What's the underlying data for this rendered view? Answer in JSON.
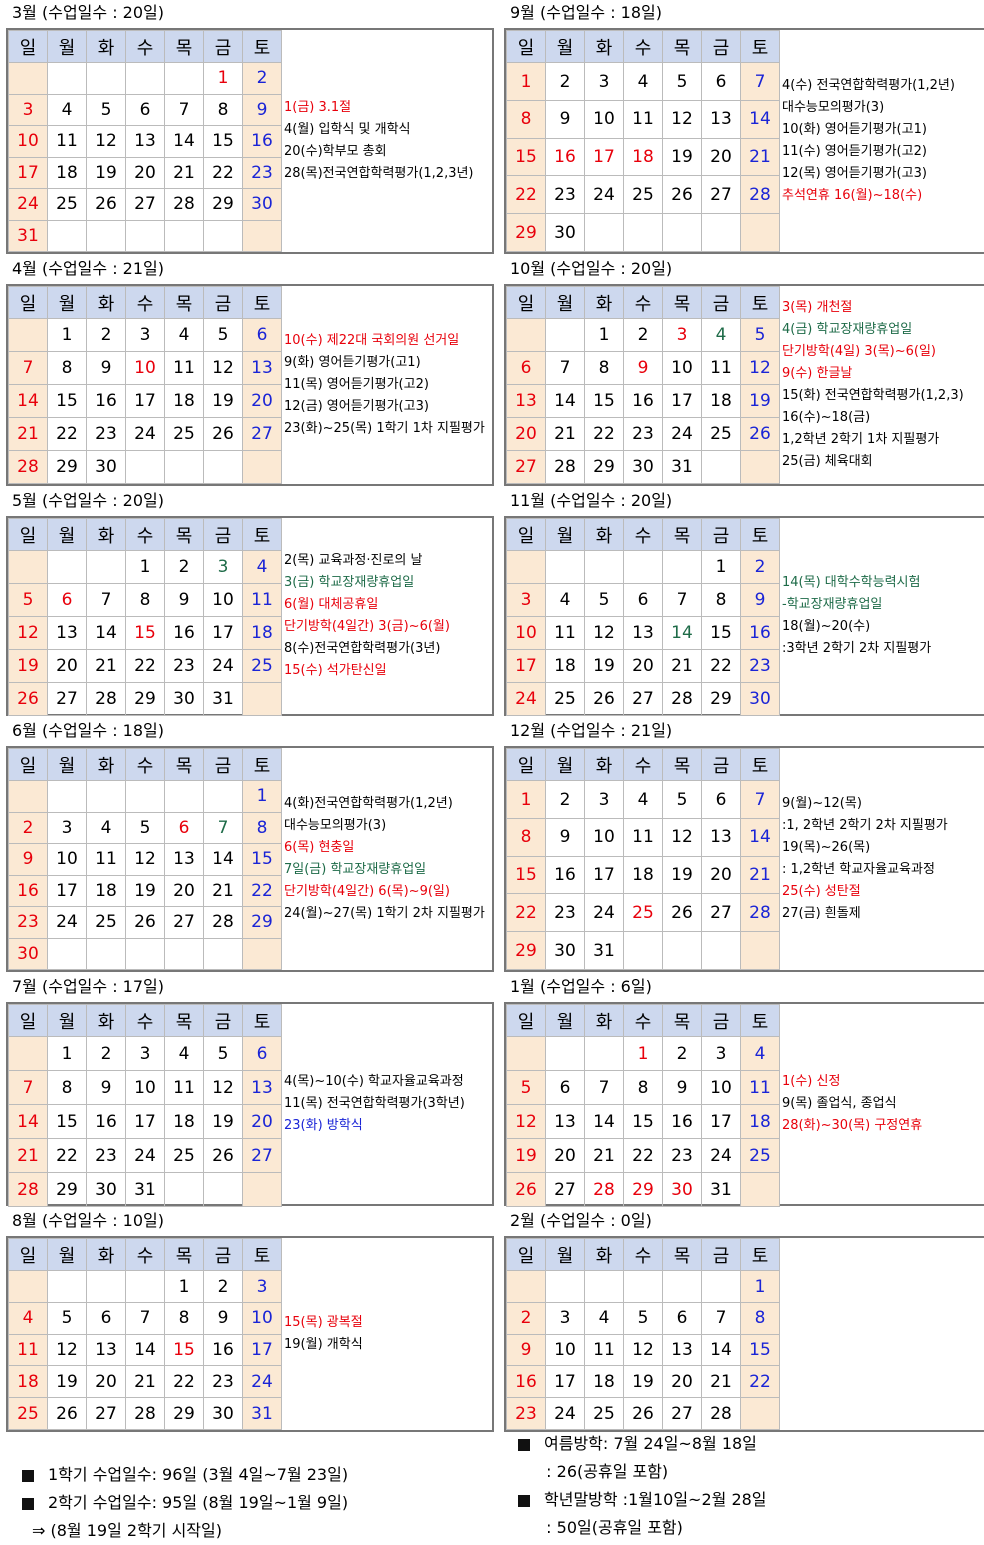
{
  "months": [
    {
      "id": "mar",
      "title": "3월 (수업일수 : 20일)",
      "headers": [
        "일",
        "월",
        "화",
        "수",
        "목",
        "금",
        "토"
      ],
      "rows": [
        [
          "",
          "",
          "",
          "",
          "",
          "1",
          "2"
        ],
        [
          "3",
          "4",
          "5",
          "6",
          "7",
          "8",
          "9"
        ],
        [
          "10",
          "11",
          "12",
          "13",
          "14",
          "15",
          "16"
        ],
        [
          "17",
          "18",
          "19",
          "20",
          "21",
          "22",
          "23"
        ],
        [
          "24",
          "25",
          "26",
          "27",
          "28",
          "29",
          "30"
        ],
        [
          "31",
          "",
          "",
          "",
          "",
          "",
          ""
        ]
      ],
      "red_days": [
        "1"
      ],
      "green_days": [],
      "blue_days": [],
      "events": [
        {
          "text": "1(금) 3.1절",
          "color": "red"
        },
        {
          "text": "4(월) 입학식 및 개학식",
          "color": ""
        },
        {
          "text": "20(수)학부모 총회",
          "color": ""
        },
        {
          "text": "28(목)전국연합학력평가(1,2,3년)",
          "color": ""
        }
      ]
    },
    {
      "id": "sep",
      "title": "9월 (수업일수 : 18일)",
      "headers": [
        "일",
        "월",
        "화",
        "수",
        "목",
        "금",
        "토"
      ],
      "rows": [
        [
          "1",
          "2",
          "3",
          "4",
          "5",
          "6",
          "7"
        ],
        [
          "8",
          "9",
          "10",
          "11",
          "12",
          "13",
          "14"
        ],
        [
          "15",
          "16",
          "17",
          "18",
          "19",
          "20",
          "21"
        ],
        [
          "22",
          "23",
          "24",
          "25",
          "26",
          "27",
          "28"
        ],
        [
          "29",
          "30",
          "",
          "",
          "",
          "",
          ""
        ]
      ],
      "red_days": [
        "16",
        "17",
        "18"
      ],
      "green_days": [],
      "blue_days": [],
      "events": [
        {
          "text": "4(수)  전국연합학력평가(1,2년)",
          "color": ""
        },
        {
          "text": "    대수능모의평가(3)",
          "color": ""
        },
        {
          "text": "10(화) 영어듣기평가(고1)",
          "color": ""
        },
        {
          "text": "11(수) 영어듣기평가(고2)",
          "color": ""
        },
        {
          "text": "12(목) 영어듣기평가(고3)",
          "color": ""
        },
        {
          "text": "추석연휴 16(월)~18(수)",
          "color": "red"
        }
      ]
    },
    {
      "id": "apr",
      "title": "4월 (수업일수 : 21일)",
      "headers": [
        "일",
        "월",
        "화",
        "수",
        "목",
        "금",
        "토"
      ],
      "rows": [
        [
          "",
          "1",
          "2",
          "3",
          "4",
          "5",
          "6"
        ],
        [
          "7",
          "8",
          "9",
          "10",
          "11",
          "12",
          "13"
        ],
        [
          "14",
          "15",
          "16",
          "17",
          "18",
          "19",
          "20"
        ],
        [
          "21",
          "22",
          "23",
          "24",
          "25",
          "26",
          "27"
        ],
        [
          "28",
          "29",
          "30",
          "",
          "",
          "",
          ""
        ]
      ],
      "red_days": [
        "10"
      ],
      "green_days": [],
      "blue_days": [],
      "events": [
        {
          "text": "10(수) 제22대 국회의원 선거일",
          "color": "red"
        },
        {
          "text": "9(화) 영어듣기평가(고1)",
          "color": ""
        },
        {
          "text": "11(목) 영어듣기평가(고2)",
          "color": ""
        },
        {
          "text": "12(금) 영어듣기평가(고3)",
          "color": ""
        },
        {
          "text": "23(화)~25(목) 1학기 1차 지필평가",
          "color": ""
        }
      ]
    },
    {
      "id": "oct",
      "title": "10월 (수업일수 : 20일)",
      "headers": [
        "일",
        "월",
        "화",
        "수",
        "목",
        "금",
        "토"
      ],
      "rows": [
        [
          "",
          "",
          "1",
          "2",
          "3",
          "4",
          "5"
        ],
        [
          "6",
          "7",
          "8",
          "9",
          "10",
          "11",
          "12"
        ],
        [
          "13",
          "14",
          "15",
          "16",
          "17",
          "18",
          "19"
        ],
        [
          "20",
          "21",
          "22",
          "23",
          "24",
          "25",
          "26"
        ],
        [
          "27",
          "28",
          "29",
          "30",
          "31",
          "",
          ""
        ]
      ],
      "red_days": [
        "3",
        "9"
      ],
      "green_days": [
        "4"
      ],
      "blue_days": [],
      "events": [
        {
          "text": "3(목) 개천절",
          "color": "red"
        },
        {
          "text": "4(금) 학교장재량휴업일",
          "color": "green"
        },
        {
          "text": "단기방학(4일) 3(목)~6(일)",
          "color": "red"
        },
        {
          "text": "9(수) 한글날",
          "color": "red"
        },
        {
          "text": "15(화)  전국연합학력평가(1,2,3)",
          "color": ""
        },
        {
          "text": "16(수)~18(금)",
          "color": ""
        },
        {
          "text": "  1,2학년 2학기 1차 지필평가",
          "color": ""
        },
        {
          "text": "25(금) 체육대회",
          "color": ""
        }
      ]
    },
    {
      "id": "may",
      "title": "5월 (수업일수 : 20일)",
      "headers": [
        "일",
        "월",
        "화",
        "수",
        "목",
        "금",
        "토"
      ],
      "rows": [
        [
          "",
          "",
          "",
          "1",
          "2",
          "3",
          "4"
        ],
        [
          "5",
          "6",
          "7",
          "8",
          "9",
          "10",
          "11"
        ],
        [
          "12",
          "13",
          "14",
          "15",
          "16",
          "17",
          "18"
        ],
        [
          "19",
          "20",
          "21",
          "22",
          "23",
          "24",
          "25"
        ],
        [
          "26",
          "27",
          "28",
          "29",
          "30",
          "31",
          ""
        ]
      ],
      "red_days": [
        "6",
        "15"
      ],
      "green_days": [
        "3"
      ],
      "blue_days": [],
      "events": [
        {
          "text": "2(목) 교육과정·진로의 날",
          "color": ""
        },
        {
          "text": "3(금) 학교장재량휴업일",
          "color": "green"
        },
        {
          "text": "6(월) 대체공휴일",
          "color": "red"
        },
        {
          "text": "단기방학(4일간) 3(금)~6(월)",
          "color": "red"
        },
        {
          "text": "8(수)전국연합학력평가(3년)",
          "color": ""
        },
        {
          "text": "15(수) 석가탄신일",
          "color": "red"
        }
      ]
    },
    {
      "id": "nov",
      "title": "11월 (수업일수 : 20일)",
      "headers": [
        "일",
        "월",
        "화",
        "수",
        "목",
        "금",
        "토"
      ],
      "rows": [
        [
          "",
          "",
          "",
          "",
          "",
          "1",
          "2"
        ],
        [
          "3",
          "4",
          "5",
          "6",
          "7",
          "8",
          "9"
        ],
        [
          "10",
          "11",
          "12",
          "13",
          "14",
          "15",
          "16"
        ],
        [
          "17",
          "18",
          "19",
          "20",
          "21",
          "22",
          "23"
        ],
        [
          "24",
          "25",
          "26",
          "27",
          "28",
          "29",
          "30"
        ]
      ],
      "red_days": [],
      "green_days": [
        "14"
      ],
      "blue_days": [],
      "events": [
        {
          "text": "14(목) 대학수학능력시험",
          "color": "green"
        },
        {
          "text": "  -학교장재량휴업일",
          "color": "green"
        },
        {
          "text": "18(월)~20(수)",
          "color": ""
        },
        {
          "text": " :3학년 2학기 2차 지필평가",
          "color": ""
        }
      ]
    },
    {
      "id": "jun",
      "title": "6월 (수업일수 : 18일)",
      "headers": [
        "일",
        "월",
        "화",
        "수",
        "목",
        "금",
        "토"
      ],
      "rows": [
        [
          "",
          "",
          "",
          "",
          "",
          "",
          "1"
        ],
        [
          "2",
          "3",
          "4",
          "5",
          "6",
          "7",
          "8"
        ],
        [
          "9",
          "10",
          "11",
          "12",
          "13",
          "14",
          "15"
        ],
        [
          "16",
          "17",
          "18",
          "19",
          "20",
          "21",
          "22"
        ],
        [
          "23",
          "24",
          "25",
          "26",
          "27",
          "28",
          "29"
        ],
        [
          "30",
          "",
          "",
          "",
          "",
          "",
          ""
        ]
      ],
      "red_days": [
        "6"
      ],
      "green_days": [
        "7"
      ],
      "blue_days": [],
      "events": [
        {
          "text": "4(화)전국연합학력평가(1,2년)",
          "color": ""
        },
        {
          "text": "  대수능모의평가(3)",
          "color": ""
        },
        {
          "text": "6(목) 현충일",
          "color": "red"
        },
        {
          "text": "7일(금) 학교장재량휴업일",
          "color": "green"
        },
        {
          "text": "단기방학(4일간) 6(목)~9(일)",
          "color": "red"
        },
        {
          "text": "24(월)~27(목) 1학기 2차 지필평가",
          "color": ""
        }
      ]
    },
    {
      "id": "dec",
      "title": "12월 (수업일수 : 21일)",
      "headers": [
        "일",
        "월",
        "화",
        "수",
        "목",
        "금",
        "토"
      ],
      "rows": [
        [
          "1",
          "2",
          "3",
          "4",
          "5",
          "6",
          "7"
        ],
        [
          "8",
          "9",
          "10",
          "11",
          "12",
          "13",
          "14"
        ],
        [
          "15",
          "16",
          "17",
          "18",
          "19",
          "20",
          "21"
        ],
        [
          "22",
          "23",
          "24",
          "25",
          "26",
          "27",
          "28"
        ],
        [
          "29",
          "30",
          "31",
          "",
          "",
          "",
          ""
        ]
      ],
      "red_days": [
        "25"
      ],
      "green_days": [],
      "blue_days": [],
      "events": [
        {
          "text": "9(월)~12(목)",
          "color": ""
        },
        {
          "text": " :1, 2학년 2학기 2차 지필평가",
          "color": ""
        },
        {
          "text": "19(목)~26(목)",
          "color": ""
        },
        {
          "text": " : 1,2학년 학교자율교육과정",
          "color": ""
        },
        {
          "text": "25(수) 성탄절",
          "color": "red"
        },
        {
          "text": "27(금) 흰돌제",
          "color": ""
        }
      ]
    },
    {
      "id": "jul",
      "title": "7월 (수업일수 : 17일)",
      "headers": [
        "일",
        "월",
        "화",
        "수",
        "목",
        "금",
        "토"
      ],
      "rows": [
        [
          "",
          "1",
          "2",
          "3",
          "4",
          "5",
          "6"
        ],
        [
          "7",
          "8",
          "9",
          "10",
          "11",
          "12",
          "13"
        ],
        [
          "14",
          "15",
          "16",
          "17",
          "18",
          "19",
          "20"
        ],
        [
          "21",
          "22",
          "23",
          "24",
          "25",
          "26",
          "27"
        ],
        [
          "28",
          "29",
          "30",
          "31",
          "",
          "",
          ""
        ]
      ],
      "red_days": [],
      "green_days": [],
      "blue_days": [],
      "events": [
        {
          "text": "4(목)~10(수)  학교자율교육과정",
          "color": ""
        },
        {
          "text": "11(목)  전국연합학력평가(3학년)",
          "color": ""
        },
        {
          "text": "23(화) 방학식",
          "color": "blue"
        }
      ]
    },
    {
      "id": "jan",
      "title": "1월 (수업일수 : 6일)",
      "headers": [
        "일",
        "월",
        "화",
        "수",
        "목",
        "금",
        "토"
      ],
      "rows": [
        [
          "",
          "",
          "",
          "1",
          "2",
          "3",
          "4"
        ],
        [
          "5",
          "6",
          "7",
          "8",
          "9",
          "10",
          "11"
        ],
        [
          "12",
          "13",
          "14",
          "15",
          "16",
          "17",
          "18"
        ],
        [
          "19",
          "20",
          "21",
          "22",
          "23",
          "24",
          "25"
        ],
        [
          "26",
          "27",
          "28",
          "29",
          "30",
          "31",
          ""
        ]
      ],
      "red_days": [
        "1",
        "28",
        "29",
        "30"
      ],
      "green_days": [],
      "blue_days": [],
      "events": [
        {
          "text": "1(수) 신정",
          "color": "red"
        },
        {
          "text": "9(목) 졸업식, 종업식",
          "color": ""
        },
        {
          "text": "28(화)~30(목) 구정연휴",
          "color": "red"
        }
      ]
    },
    {
      "id": "aug",
      "title": "8월 (수업일수 : 10일)",
      "headers": [
        "일",
        "월",
        "화",
        "수",
        "목",
        "금",
        "토"
      ],
      "rows": [
        [
          "",
          "",
          "",
          "",
          "1",
          "2",
          "3"
        ],
        [
          "4",
          "5",
          "6",
          "7",
          "8",
          "9",
          "10"
        ],
        [
          "11",
          "12",
          "13",
          "14",
          "15",
          "16",
          "17"
        ],
        [
          "18",
          "19",
          "20",
          "21",
          "22",
          "23",
          "24"
        ],
        [
          "25",
          "26",
          "27",
          "28",
          "29",
          "30",
          "31"
        ]
      ],
      "red_days": [
        "15"
      ],
      "green_days": [],
      "blue_days": [],
      "events": [
        {
          "text": "15(목) 광복절",
          "color": "red"
        },
        {
          "text": "19(월) 개학식",
          "color": ""
        }
      ]
    },
    {
      "id": "feb",
      "title": "2월 (수업일수 : 0일)",
      "headers": [
        "일",
        "월",
        "화",
        "수",
        "목",
        "금",
        "토"
      ],
      "rows": [
        [
          "",
          "",
          "",
          "",
          "",
          "",
          "1"
        ],
        [
          "2",
          "3",
          "4",
          "5",
          "6",
          "7",
          "8"
        ],
        [
          "9",
          "10",
          "11",
          "12",
          "13",
          "14",
          "15"
        ],
        [
          "16",
          "17",
          "18",
          "19",
          "20",
          "21",
          "22"
        ],
        [
          "23",
          "24",
          "25",
          "26",
          "27",
          "28",
          ""
        ]
      ],
      "red_days": [],
      "green_days": [],
      "blue_days": [],
      "events": []
    }
  ],
  "footer": {
    "left": [
      "1학기 수업일수: 96일 (3월 4일~7월 23일)",
      "2학기 수업일수: 95일 (8월 19일~1월 9일)",
      "⇒ (8월 19일 2학기 시작일)"
    ],
    "right": [
      "여름방학: 7월 24일~8월 18일",
      "  : 26(공휴일 포함)",
      "학년말방학 :1월10일~2월 28일",
      "  : 50일(공휴일 포함)"
    ]
  },
  "colors": {
    "red": "#e8000b",
    "blue": "#1a24d6",
    "green": "#1e6b48",
    "header_bg": "#cdd8ee",
    "weekend_bg": "#fbe9d4"
  }
}
